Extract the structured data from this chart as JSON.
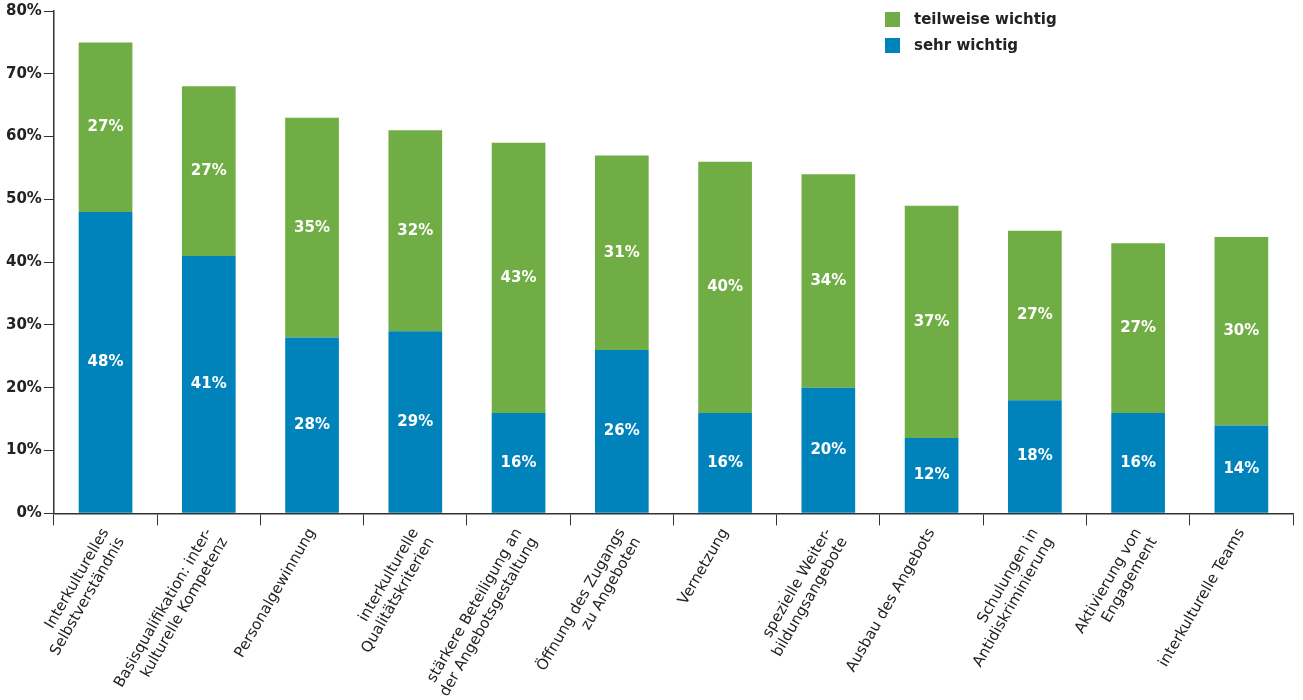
{
  "chart_data": {
    "type": "bar",
    "stacked": true,
    "categories": [
      "Interkulturelles\nSelbstverständnis",
      "Basisqualifikation: inter-\nkulturelle Kompetenz",
      "Personalgewinnung",
      "interkulturelle\nQualitätskriterien",
      "stärkere Beteiligung an\nder Angebotsgestaltung",
      "Öffnung des Zugangs\nzu Angeboten",
      "Vernetzung",
      "spezielle Weiter-\nbildungsangebote",
      "Ausbau des Angebots",
      "Schulungen in\nAntidiskriminierung",
      "Aktivierung von\nEngagement",
      "interkulturelle Teams"
    ],
    "series": [
      {
        "name": "sehr wichtig",
        "color": "#0083bb",
        "values": [
          48,
          41,
          28,
          29,
          16,
          26,
          16,
          20,
          12,
          18,
          16,
          14
        ],
        "value_labels": [
          "48%",
          "41%",
          "28%",
          "29%",
          "16%",
          "26%",
          "16%",
          "20%",
          "12%",
          "18%",
          "16%",
          "14%"
        ]
      },
      {
        "name": "teilweise wichtig",
        "color": "#70ad44",
        "values": [
          27,
          27,
          35,
          32,
          43,
          31,
          40,
          34,
          37,
          27,
          27,
          30
        ],
        "value_labels": [
          "27%",
          "27%",
          "35%",
          "32%",
          "43%",
          "31%",
          "40%",
          "34%",
          "37%",
          "27%",
          "27%",
          "30%"
        ]
      }
    ],
    "ylim": [
      0,
      80
    ],
    "yticks": [
      {
        "value": 0,
        "label": "0%"
      },
      {
        "value": 10,
        "label": "10%"
      },
      {
        "value": 20,
        "label": "20%"
      },
      {
        "value": 30,
        "label": "30%"
      },
      {
        "value": 40,
        "label": "40%"
      },
      {
        "value": 50,
        "label": "50%"
      },
      {
        "value": 60,
        "label": "60%"
      },
      {
        "value": 70,
        "label": "70%"
      },
      {
        "value": 80,
        "label": "80%"
      }
    ],
    "grid": false,
    "legend": "top right"
  }
}
